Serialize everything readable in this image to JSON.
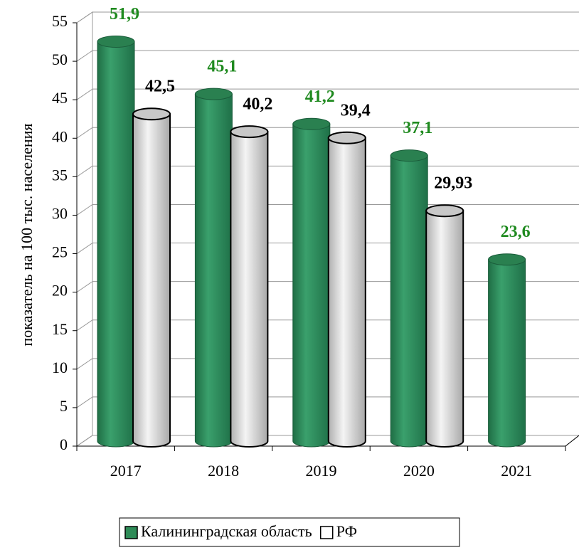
{
  "chart_data": {
    "type": "bar3d",
    "y_label": "показатель на 100 тыс. населения",
    "categories": [
      "2017",
      "2018",
      "2019",
      "2020",
      "2021"
    ],
    "series": [
      {
        "name": "Калининградская область",
        "color": "#2e8b57",
        "label_color": "#1f8a1f",
        "values": [
          51.9,
          45.1,
          41.2,
          37.1,
          23.6
        ],
        "value_labels": [
          "51,9",
          "45,1",
          "41,2",
          "37,1",
          "23,6"
        ]
      },
      {
        "name": "РФ",
        "color": "#e4e4e4",
        "label_color": "#000000",
        "values": [
          42.5,
          40.2,
          39.4,
          29.93,
          null
        ],
        "value_labels": [
          "42,5",
          "40,2",
          "39,4",
          "29,93",
          null
        ]
      }
    ],
    "ylim": [
      0,
      55
    ],
    "yticks": [
      0,
      5,
      10,
      15,
      20,
      25,
      30,
      35,
      40,
      45,
      50,
      55
    ],
    "grid": true,
    "legend": "bottom"
  }
}
